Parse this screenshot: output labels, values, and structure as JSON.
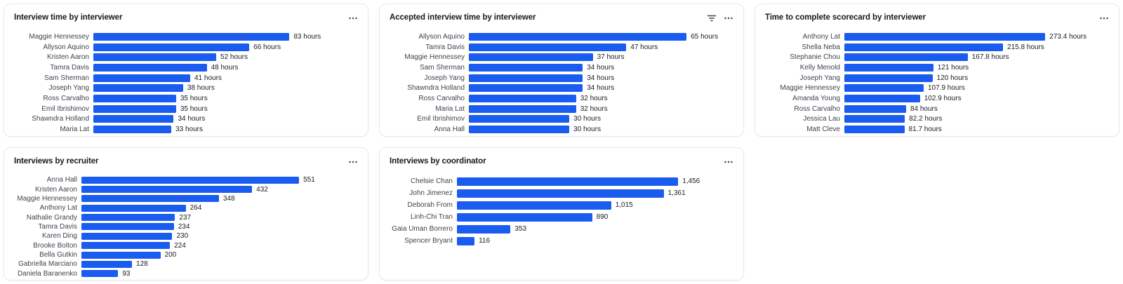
{
  "accent_color": "#1a5cf0",
  "chart_data": [
    {
      "type": "bar",
      "orientation": "horizontal",
      "title": "Interview time by interviewer",
      "header_icons": [
        "more-menu-icon"
      ],
      "unit": "hours",
      "bar_color": "#1a5cf0",
      "xlim": [
        0,
        112
      ],
      "categories": [
        "Maggie Hennessey",
        "Allyson Aquino",
        "Kristen Aaron",
        "Tamra Davis",
        "Sam Sherman",
        "Joseph Yang",
        "Ross Carvalho",
        "Emil Ibrishimov",
        "Shawndra Holland",
        "Maria Lat"
      ],
      "values": [
        83,
        66,
        52,
        48,
        41,
        38,
        35,
        35,
        34,
        33
      ],
      "value_labels": [
        "83 hours",
        "66 hours",
        "52 hours",
        "48 hours",
        "41 hours",
        "38 hours",
        "35 hours",
        "35 hours",
        "34 hours",
        "33 hours"
      ]
    },
    {
      "type": "bar",
      "orientation": "horizontal",
      "title": "Accepted interview time by interviewer",
      "header_icons": [
        "filter-icon",
        "more-menu-icon"
      ],
      "unit": "hours",
      "bar_color": "#1a5cf0",
      "xlim": [
        0,
        79
      ],
      "categories": [
        "Allyson Aquino",
        "Tamra Davis",
        "Maggie Hennessey",
        "Sam Sherman",
        "Joseph Yang",
        "Shawndra Holland",
        "Ross Carvalho",
        "Maria Lat",
        "Emil Ibrishimov",
        "Anna Hall"
      ],
      "values": [
        65,
        47,
        37,
        34,
        34,
        34,
        32,
        32,
        30,
        30
      ],
      "value_labels": [
        "65 hours",
        "47 hours",
        "37 hours",
        "34 hours",
        "34 hours",
        "34 hours",
        "32 hours",
        "32 hours",
        "30 hours",
        "30 hours"
      ]
    },
    {
      "type": "bar",
      "orientation": "horizontal",
      "title": "Time to complete scorecard by interviewer",
      "header_icons": [
        "more-menu-icon"
      ],
      "unit": "hours",
      "bar_color": "#1a5cf0",
      "xlim": [
        0,
        360
      ],
      "categories": [
        "Anthony Lat",
        "Shella Neba",
        "Stephanie Chou",
        "Kelly Menold",
        "Joseph Yang",
        "Maggie Hennessey",
        "Amanda Young",
        "Ross Carvalho",
        "Jessica Lau",
        "Matt Cleve"
      ],
      "values": [
        273.4,
        215.8,
        167.8,
        121,
        120,
        107.9,
        102.9,
        84,
        82.2,
        81.7
      ],
      "value_labels": [
        "273.4 hours",
        "215.8 hours",
        "167.8 hours",
        "121 hours",
        "120 hours",
        "107.9 hours",
        "102.9 hours",
        "84 hours",
        "82.2 hours",
        "81.7 hours"
      ]
    },
    {
      "type": "bar",
      "orientation": "horizontal",
      "title": "Interviews by recruiter",
      "header_icons": [
        "more-menu-icon"
      ],
      "unit": "",
      "bar_color": "#1a5cf0",
      "xlim": [
        0,
        700
      ],
      "categories": [
        "Anna Hall",
        "Kristen Aaron",
        "Maggie Hennessey",
        "Anthony Lat",
        "Nathalie Grandy",
        "Tamra Davis",
        "Karen Ding",
        "Brooke Bolton",
        "Bella Gutkin",
        "Gabriella Marciano",
        "Daniela Baranenko"
      ],
      "values": [
        551,
        432,
        348,
        264,
        237,
        234,
        230,
        224,
        200,
        128,
        93
      ],
      "value_labels": [
        "551",
        "432",
        "348",
        "264",
        "237",
        "234",
        "230",
        "224",
        "200",
        "128",
        "93"
      ]
    },
    {
      "type": "bar",
      "orientation": "horizontal",
      "title": "Interviews by coordinator",
      "header_icons": [
        "more-menu-icon"
      ],
      "unit": "",
      "bar_color": "#1a5cf0",
      "xlim": [
        0,
        1820
      ],
      "categories": [
        "Chelsie Chan",
        "John Jimenez",
        "Deborah From",
        "Linh-Chi Tran",
        "Gaia Uman Borrero",
        "Spencer Bryant"
      ],
      "values": [
        1456,
        1361,
        1015,
        890,
        353,
        116
      ],
      "value_labels": [
        "1,456",
        "1,361",
        "1,015",
        "890",
        "353",
        "116"
      ]
    }
  ]
}
